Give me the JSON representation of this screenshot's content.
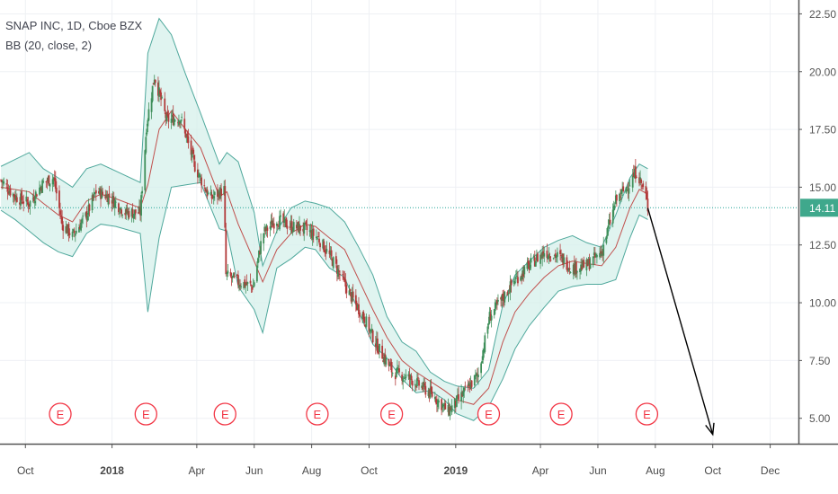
{
  "legend": {
    "symbol_line": "SNAP INC, 1D, Cboe BZX",
    "indicator_line": "BB (20, close, 2)"
  },
  "price_label": "14.11",
  "chart_data": {
    "type": "candlestick",
    "symbol": "SNAP INC",
    "interval": "1D",
    "exchange": "Cboe BZX",
    "indicator": "BB (20, close, 2)",
    "x_axis": {
      "ticks": [
        "Oct",
        "2018",
        "Apr",
        "Jun",
        "Aug",
        "Oct",
        "2019",
        "Apr",
        "Jun",
        "Aug",
        "Oct",
        "Dec"
      ],
      "tick_dates": [
        "2017-10-01",
        "2018-01-01",
        "2018-04-01",
        "2018-06-01",
        "2018-08-01",
        "2018-10-01",
        "2019-01-01",
        "2019-04-01",
        "2019-06-01",
        "2019-08-01",
        "2019-10-01",
        "2019-12-01"
      ],
      "range": [
        "2017-09-04",
        "2019-12-31"
      ]
    },
    "y_axis": {
      "ticks": [
        "5.00",
        "7.50",
        "10.00",
        "12.50",
        "15.00",
        "17.50",
        "20.00",
        "22.50"
      ],
      "range": [
        3.9,
        23.1
      ],
      "position": "right"
    },
    "last_price": 14.11,
    "earnings_markers": {
      "label": "E",
      "dates": [
        "2017-11-07",
        "2018-02-06",
        "2018-05-01",
        "2018-08-07",
        "2018-10-25",
        "2019-02-05",
        "2019-04-23",
        "2019-07-23"
      ]
    },
    "close_path": [
      [
        "2017-09-05",
        15.3
      ],
      [
        "2017-09-20",
        14.6
      ],
      [
        "2017-10-05",
        14.3
      ],
      [
        "2017-10-20",
        15.2
      ],
      [
        "2017-10-31",
        15.4
      ],
      [
        "2017-11-09",
        13.4
      ],
      [
        "2017-11-20",
        12.9
      ],
      [
        "2017-12-05",
        13.8
      ],
      [
        "2017-12-15",
        14.8
      ],
      [
        "2017-12-29",
        14.6
      ],
      [
        "2018-01-15",
        13.9
      ],
      [
        "2018-01-31",
        13.9
      ],
      [
        "2018-02-07",
        17.8
      ],
      [
        "2018-02-15",
        19.8
      ],
      [
        "2018-02-28",
        17.9
      ],
      [
        "2018-03-15",
        18.0
      ],
      [
        "2018-03-30",
        15.9
      ],
      [
        "2018-04-15",
        14.5
      ],
      [
        "2018-04-30",
        14.9
      ],
      [
        "2018-05-02",
        11.2
      ],
      [
        "2018-05-15",
        10.9
      ],
      [
        "2018-05-31",
        10.7
      ],
      [
        "2018-06-10",
        13.0
      ],
      [
        "2018-06-25",
        13.6
      ],
      [
        "2018-07-10",
        13.3
      ],
      [
        "2018-07-25",
        13.2
      ],
      [
        "2018-08-08",
        12.8
      ],
      [
        "2018-08-25",
        11.7
      ],
      [
        "2018-09-10",
        10.4
      ],
      [
        "2018-09-25",
        9.4
      ],
      [
        "2018-10-10",
        8.1
      ],
      [
        "2018-10-26",
        7.0
      ],
      [
        "2018-11-10",
        6.8
      ],
      [
        "2018-11-25",
        6.4
      ],
      [
        "2018-12-10",
        5.9
      ],
      [
        "2018-12-24",
        5.3
      ],
      [
        "2019-01-08",
        6.0
      ],
      [
        "2019-01-25",
        6.9
      ],
      [
        "2019-02-06",
        9.4
      ],
      [
        "2019-02-20",
        10.2
      ],
      [
        "2019-03-05",
        11.0
      ],
      [
        "2019-03-20",
        11.6
      ],
      [
        "2019-04-05",
        12.2
      ],
      [
        "2019-04-20",
        12.0
      ],
      [
        "2019-05-05",
        11.5
      ],
      [
        "2019-05-20",
        11.6
      ],
      [
        "2019-06-05",
        12.2
      ],
      [
        "2019-06-20",
        14.4
      ],
      [
        "2019-07-05",
        15.2
      ],
      [
        "2019-07-12",
        15.7
      ],
      [
        "2019-07-22",
        14.6
      ],
      [
        "2019-07-24",
        14.1
      ]
    ],
    "bb_upper": [
      [
        15.9,
        16.2,
        16.5,
        15.8,
        15.4,
        15.0,
        15.8,
        16.0,
        15.7,
        15.2,
        20.8,
        22.3,
        21.6,
        19.9,
        18.2,
        16.0,
        16.5,
        16.1,
        13.9,
        11.6,
        13.1,
        14.1,
        14.4,
        14.3,
        14.1,
        13.5,
        12.4,
        11.2,
        9.4,
        8.3,
        7.9,
        7.0,
        6.6,
        6.4,
        6.3,
        7.1,
        9.9,
        11.2,
        11.8,
        12.4,
        12.7,
        12.9,
        12.6,
        12.4,
        13.8,
        15.4,
        16.0,
        15.8
      ]
    ],
    "bb_mid": [
      [
        15.0,
        14.9,
        14.8,
        14.3,
        13.8,
        13.5,
        14.4,
        14.7,
        14.5,
        14.1,
        15.1,
        17.5,
        18.3,
        17.5,
        16.7,
        14.6,
        14.8,
        13.4,
        11.8,
        10.9,
        12.3,
        13.0,
        13.4,
        13.3,
        12.8,
        12.3,
        11.0,
        9.7,
        8.5,
        7.5,
        7.0,
        6.6,
        6.2,
        5.8,
        5.6,
        6.3,
        8.3,
        9.6,
        10.4,
        11.1,
        11.6,
        11.8,
        11.7,
        11.6,
        12.4,
        14.1,
        14.9,
        14.7
      ]
    ],
    "bb_lower": [
      [
        14.0,
        13.6,
        13.1,
        12.6,
        12.2,
        12.0,
        13.0,
        13.4,
        13.3,
        13.0,
        9.6,
        12.8,
        15.0,
        15.1,
        15.2,
        13.2,
        13.1,
        10.7,
        9.7,
        8.7,
        11.5,
        11.9,
        12.4,
        12.3,
        11.5,
        11.1,
        9.6,
        8.2,
        7.6,
        6.7,
        6.1,
        6.2,
        5.8,
        5.2,
        4.9,
        5.5,
        6.7,
        8.0,
        9.0,
        9.8,
        10.5,
        10.7,
        10.8,
        10.8,
        11.0,
        12.8,
        13.8,
        13.6
      ]
    ],
    "bb_dates": [
      "2017-09-05",
      "2017-09-20",
      "2017-10-05",
      "2017-10-20",
      "2017-11-05",
      "2017-11-20",
      "2017-12-05",
      "2017-12-20",
      "2018-01-05",
      "2018-01-31",
      "2018-02-08",
      "2018-02-20",
      "2018-03-05",
      "2018-03-20",
      "2018-04-05",
      "2018-04-25",
      "2018-05-03",
      "2018-05-15",
      "2018-06-01",
      "2018-06-10",
      "2018-06-25",
      "2018-07-10",
      "2018-07-25",
      "2018-08-05",
      "2018-08-20",
      "2018-09-05",
      "2018-09-20",
      "2018-10-05",
      "2018-10-20",
      "2018-11-05",
      "2018-11-20",
      "2018-12-05",
      "2018-12-20",
      "2019-01-02",
      "2019-01-20",
      "2019-02-05",
      "2019-02-20",
      "2019-03-05",
      "2019-03-20",
      "2019-04-05",
      "2019-04-20",
      "2019-05-05",
      "2019-05-20",
      "2019-06-05",
      "2019-06-20",
      "2019-07-05",
      "2019-07-15",
      "2019-07-24"
    ],
    "annotation_arrow": {
      "from": [
        "2019-07-24",
        14.1
      ],
      "to": [
        "2019-10-01",
        4.3
      ]
    },
    "grid": true,
    "legend_position": "top-left"
  }
}
